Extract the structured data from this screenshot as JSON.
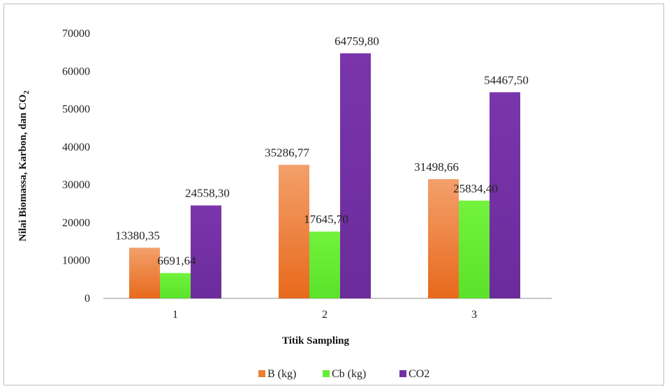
{
  "chart_data": {
    "type": "bar",
    "categories": [
      "1",
      "2",
      "3"
    ],
    "series": [
      {
        "name": "B (kg)",
        "values": [
          13380.35,
          35286.77,
          31498.66
        ],
        "labels": [
          "13380,35",
          "35286,77",
          "31498,66"
        ],
        "color": "#ed7d31"
      },
      {
        "name": "Cb (kg)",
        "values": [
          6691.64,
          17645.7,
          25834.4
        ],
        "labels": [
          "6691,64",
          "17645,70",
          "25834,40"
        ],
        "color": "#66ee33"
      },
      {
        "name": "CO2",
        "values": [
          24558.3,
          64759.8,
          54467.5
        ],
        "labels": [
          "24558,30",
          "64759,80",
          "54467,50"
        ],
        "color": "#7030a0"
      }
    ],
    "title": "",
    "xlabel": "Titik Sampling",
    "ylabel": "Nilai Biomassa, Karbon, dan CO",
    "ylabel_subscript": "2",
    "ylim": [
      0,
      70000
    ],
    "yticks": [
      "0",
      "10000",
      "20000",
      "30000",
      "40000",
      "50000",
      "60000",
      "70000"
    ],
    "grid": false,
    "legend_position": "bottom"
  }
}
